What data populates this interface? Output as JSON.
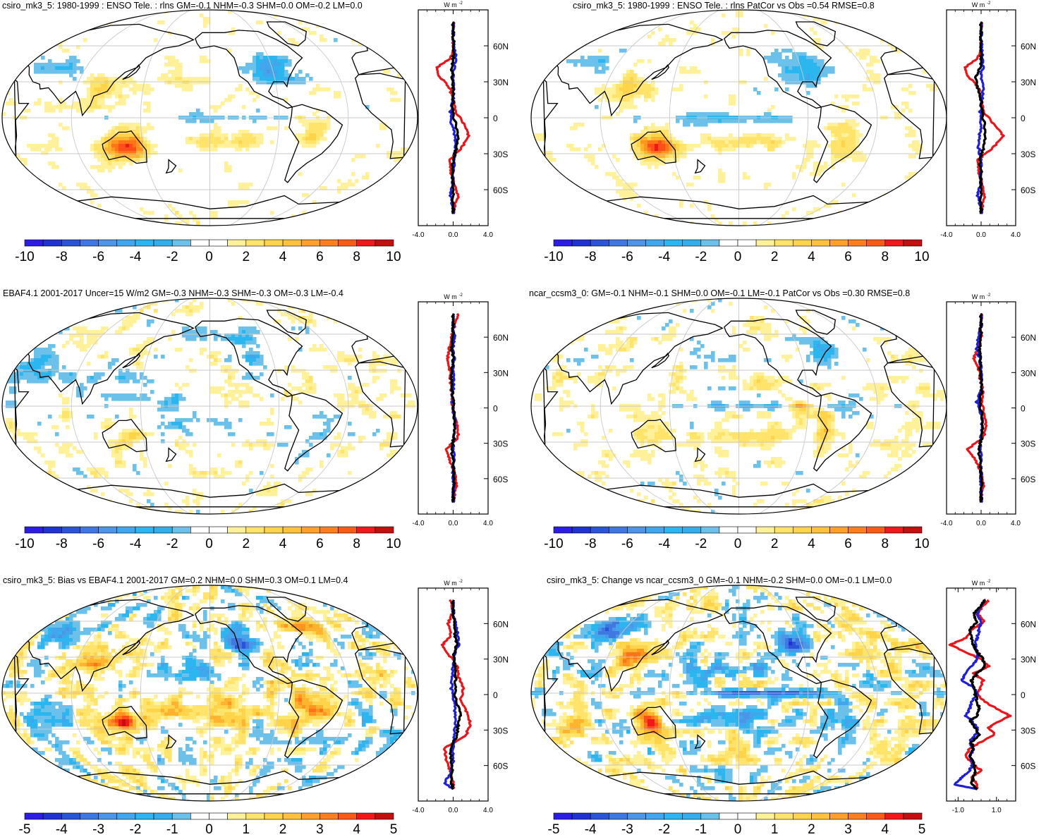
{
  "colors": {
    "scale": [
      "#2b1de6",
      "#1f32d4",
      "#2a55d8",
      "#3f78e0",
      "#4d95e6",
      "#43a6ec",
      "#2cb6f0",
      "#6cc1ea",
      "#ffffff",
      "#ffffff",
      "#fff199",
      "#ffe36b",
      "#ffd34a",
      "#ffb32e",
      "#ff9520",
      "#ff7418",
      "#ff4e1a",
      "#f0181a",
      "#c40f0f"
    ],
    "land": "#000000",
    "grid": "#c8c8c8",
    "profile_red": "#e8151b",
    "profile_blue": "#1f1fd6",
    "profile_black": "#000000"
  },
  "panels": [
    {
      "id": "p1",
      "title": "csiro_mk3_5: 1980-1999 : ENSO Tele. : rlns GM=-0.1 NHM=-0.3 SHM=0.0 OM=-0.2 LM=0.0",
      "colorbar_labels": [
        "-10",
        "-8",
        "-6",
        "-4",
        "-2",
        "0",
        "2",
        "4",
        "6",
        "8",
        "10"
      ],
      "profile": {
        "unit": "W m",
        "unit_exp": "-2",
        "xticks": [
          "-4.0",
          "0.0",
          "4.0"
        ],
        "xrange": [
          -4,
          4
        ],
        "yticks": [
          "60N",
          "30N",
          "0",
          "30S",
          "60S"
        ],
        "lat": [
          80,
          70,
          60,
          50,
          42,
          35,
          25,
          15,
          5,
          -5,
          -15,
          -25,
          -35,
          -45,
          -55,
          -65,
          -75,
          -80
        ],
        "red": [
          0,
          0,
          0,
          -0.3,
          -1.8,
          -1.6,
          -0.4,
          0,
          0.3,
          1.2,
          1.8,
          1.0,
          -0.4,
          -0.3,
          0.1,
          0.6,
          0.1,
          0
        ],
        "blue": [
          0,
          0,
          0.1,
          0.3,
          0.1,
          0,
          0.1,
          0,
          -0.3,
          -0.2,
          0.2,
          0.3,
          0.1,
          0,
          0,
          -0.3,
          0,
          0
        ],
        "black": [
          0,
          0,
          0.1,
          0,
          -0.2,
          -0.1,
          0,
          0,
          -0.1,
          0.3,
          0.6,
          0.4,
          0,
          -0.1,
          0,
          0,
          0,
          0
        ]
      }
    },
    {
      "id": "p2",
      "title": "csiro_mk3_5: 1980-1999 : ENSO Tele. : rlns PatCor vs Obs =0.54 RMSE=0.8",
      "colorbar_labels": [
        "-10",
        "-8",
        "-6",
        "-4",
        "-2",
        "0",
        "2",
        "4",
        "6",
        "8",
        "10"
      ],
      "profile": {
        "unit": "W m",
        "unit_exp": "-2",
        "xticks": [
          "-4.0",
          "0.0",
          "4.0"
        ],
        "xrange": [
          -4,
          4
        ],
        "yticks": [
          "60N",
          "30N",
          "0",
          "30S",
          "60S"
        ],
        "lat": [
          80,
          70,
          60,
          50,
          42,
          35,
          25,
          15,
          5,
          -5,
          -15,
          -25,
          -35,
          -45,
          -55,
          -65,
          -75,
          -80
        ],
        "red": [
          0,
          0,
          0,
          -0.4,
          -1.8,
          -1.5,
          -0.3,
          0,
          0.3,
          1.4,
          2.6,
          1.4,
          -0.4,
          -0.3,
          0.1,
          0.4,
          0.1,
          0
        ],
        "blue": [
          0,
          0,
          0.1,
          0.1,
          0.2,
          0,
          0.3,
          0.1,
          -0.1,
          0,
          -0.2,
          -0.3,
          0,
          -0.1,
          0,
          -0.4,
          0,
          0
        ],
        "black": [
          0,
          0,
          0,
          0,
          -0.1,
          -0.6,
          -0.4,
          0,
          0.1,
          0.4,
          0.5,
          0.3,
          -0.2,
          0,
          0,
          0,
          0,
          0
        ]
      }
    },
    {
      "id": "p3",
      "title": "EBAF4.1 2001-2017 Uncer=15 W/m2 GM=-0.3 NHM=-0.3 SHM=-0.3 OM=-0.3 LM=-0.4",
      "colorbar_labels": [
        "-10",
        "-8",
        "-6",
        "-4",
        "-2",
        "0",
        "2",
        "4",
        "6",
        "8",
        "10"
      ],
      "profile": {
        "unit": "W m",
        "unit_exp": "-2",
        "xticks": [
          "-4.0",
          "0.0",
          "4.0"
        ],
        "xrange": [
          -4,
          4
        ],
        "yticks": [
          "60N",
          "30N",
          "0",
          "30S",
          "60S"
        ],
        "lat": [
          80,
          70,
          60,
          50,
          42,
          35,
          25,
          15,
          5,
          -5,
          -15,
          -25,
          -35,
          -45,
          -55,
          -65,
          -75,
          -80
        ],
        "red": [
          0.5,
          0.2,
          -0.2,
          -0.5,
          -0.6,
          -0.4,
          -0.3,
          -0.2,
          -0.1,
          0,
          0.5,
          0.6,
          -0.8,
          -0.4,
          0.2,
          0.4,
          0.1,
          0
        ],
        "blue": [
          0,
          0,
          0.2,
          -0.1,
          0.1,
          0,
          0.1,
          0,
          -0.1,
          0.1,
          0.2,
          0.1,
          0,
          0.1,
          0,
          0.1,
          0,
          0
        ],
        "black": [
          0,
          0,
          0,
          -0.2,
          0,
          -0.1,
          -0.2,
          -0.1,
          0,
          0.1,
          0.2,
          0.1,
          -0.2,
          0,
          0.1,
          0.1,
          0,
          0
        ]
      }
    },
    {
      "id": "p4",
      "title": "ncar_ccsm3_0: GM=-0.1 NHM=-0.1 SHM=0.0 OM=-0.1 LM=-0.1 PatCor vs Obs =0.30 RMSE=0.8",
      "colorbar_labels": [
        "-10",
        "-8",
        "-6",
        "-4",
        "-2",
        "0",
        "2",
        "4",
        "6",
        "8",
        "10"
      ],
      "profile": {
        "unit": "W m",
        "unit_exp": "-2",
        "xticks": [
          "-4.0",
          "0.0",
          "4.0"
        ],
        "xrange": [
          -4,
          4
        ],
        "yticks": [
          "60N",
          "30N",
          "0",
          "30S",
          "60S"
        ],
        "lat": [
          80,
          70,
          60,
          50,
          42,
          35,
          25,
          15,
          5,
          -5,
          -15,
          -25,
          -35,
          -45,
          -55,
          -65,
          -75,
          -80
        ],
        "red": [
          0,
          0,
          0,
          -0.5,
          -0.8,
          -0.3,
          -0.1,
          0.2,
          0.1,
          0.3,
          0.6,
          0.3,
          -1.6,
          -0.6,
          0,
          0.3,
          0,
          0
        ],
        "blue": [
          0,
          0,
          -0.3,
          -0.5,
          -0.2,
          0,
          0.1,
          0,
          -0.5,
          0,
          0.1,
          0,
          -0.1,
          0,
          0,
          0,
          0,
          0
        ],
        "black": [
          0,
          0,
          0,
          -0.2,
          -0.1,
          -0.1,
          0,
          0.1,
          -0.2,
          0.1,
          0.2,
          0.1,
          -0.3,
          -0.1,
          0,
          0.1,
          0,
          0
        ]
      }
    },
    {
      "id": "p5",
      "title": "csiro_mk3_5: Bias vs EBAF4.1 2001-2017 GM=0.2 NHM=0.0 SHM=0.3 OM=0.1 LM=0.4",
      "colorbar_labels": [
        "-5",
        "-4",
        "-3",
        "-2",
        "-1",
        "0",
        "1",
        "2",
        "3",
        "4",
        "5"
      ],
      "profile": {
        "unit": "W m",
        "unit_exp": "-2",
        "xticks": [
          "-4.0",
          "0.0",
          "4.0"
        ],
        "xrange": [
          -4,
          4
        ],
        "yticks": [
          "60N",
          "30N",
          "0",
          "30S",
          "60S"
        ],
        "lat": [
          80,
          70,
          60,
          50,
          42,
          35,
          25,
          15,
          5,
          -5,
          -15,
          -25,
          -35,
          -45,
          -55,
          -65,
          -75,
          -80
        ],
        "red": [
          -0.4,
          0,
          -0.6,
          -0.3,
          -1.2,
          -0.6,
          0.4,
          0.6,
          1.2,
          0.8,
          1.6,
          2.0,
          1.4,
          -1.0,
          -0.8,
          -0.3,
          0,
          0
        ],
        "blue": [
          0,
          0,
          0.3,
          0.5,
          0.6,
          0.2,
          0,
          -0.1,
          -0.2,
          0.1,
          0.2,
          0.3,
          0.1,
          0,
          0,
          -0.2,
          -1.0,
          0
        ],
        "black": [
          0,
          0,
          0.2,
          0.2,
          0.4,
          0.1,
          0.2,
          0.3,
          0.2,
          0.3,
          0.9,
          0.6,
          0.4,
          -0.3,
          -0.2,
          -0.1,
          -0.2,
          0
        ]
      }
    },
    {
      "id": "p6",
      "title": "csiro_mk3_5: Change vs ncar_ccsm3_0 GM=-0.1 NHM=-0.2 SHM=0.0 OM=-0.1 LM=0.0",
      "colorbar_labels": [
        "-5",
        "-4",
        "-3",
        "-2",
        "-1",
        "0",
        "1",
        "2",
        "3",
        "4",
        "5"
      ],
      "profile": {
        "unit": "W m",
        "unit_exp": "-2",
        "xticks": [
          "-1.0",
          "1.0"
        ],
        "xtick_values": [
          -1,
          1
        ],
        "xrange": [
          -1.6,
          2.0
        ],
        "yticks": [
          "60N",
          "30N",
          "0",
          "30S",
          "60S"
        ],
        "lat": [
          80,
          75,
          68,
          62,
          55,
          48,
          42,
          36,
          30,
          24,
          18,
          12,
          6,
          0,
          -6,
          -12,
          -18,
          -22,
          -28,
          -34,
          -40,
          -46,
          -52,
          -58,
          -64,
          -70,
          -76,
          -80
        ],
        "red": [
          0.6,
          0.3,
          0.0,
          0.4,
          -0.3,
          -0.6,
          -1.4,
          -0.6,
          0.2,
          0.6,
          -0.2,
          0.3,
          0.2,
          0.0,
          0.4,
          1.0,
          1.7,
          1.2,
          0.6,
          0.9,
          0.2,
          -0.4,
          -0.6,
          -0.3,
          0.2,
          -0.3,
          0.0,
          0.0
        ],
        "blue": [
          0.4,
          0.2,
          0.0,
          0.2,
          0.1,
          0.0,
          -0.1,
          0.0,
          0.0,
          -0.3,
          -0.6,
          -0.8,
          -0.2,
          0.0,
          -0.3,
          -0.4,
          -0.6,
          -0.3,
          0.0,
          -0.1,
          -0.4,
          -0.2,
          -0.4,
          -0.2,
          -0.4,
          -0.8,
          -1.2,
          0.0
        ],
        "black": [
          0.4,
          0.2,
          -0.2,
          0.0,
          -0.4,
          -0.3,
          -0.2,
          0.0,
          0.3,
          0.4,
          0.0,
          -0.3,
          -0.2,
          -0.1,
          0.0,
          0.1,
          0.0,
          -0.4,
          -0.1,
          0.1,
          -0.3,
          -0.2,
          -0.4,
          -0.2,
          -0.1,
          -0.2,
          -0.3,
          0.0
        ]
      }
    }
  ],
  "chart_data": [
    {
      "type": "heatmap",
      "title": "csiro_mk3_5: 1980-1999 : ENSO Tele. : rlns GM=-0.1 NHM=-0.3 SHM=0.0 OM=-0.2 LM=0.0",
      "colorbar_range": [
        -10,
        10
      ],
      "units": "W m-2"
    },
    {
      "type": "heatmap",
      "title": "csiro_mk3_5: 1980-1999 : ENSO Tele. : rlns PatCor vs Obs =0.54 RMSE=0.8",
      "colorbar_range": [
        -10,
        10
      ],
      "units": "W m-2"
    },
    {
      "type": "heatmap",
      "title": "EBAF4.1 2001-2017 Uncer=15 W/m2 GM=-0.3 NHM=-0.3 SHM=-0.3 OM=-0.3 LM=-0.4",
      "colorbar_range": [
        -10,
        10
      ],
      "units": "W m-2"
    },
    {
      "type": "heatmap",
      "title": "ncar_ccsm3_0: GM=-0.1 NHM=-0.1 SHM=0.0 OM=-0.1 LM=-0.1 PatCor vs Obs =0.30 RMSE=0.8",
      "colorbar_range": [
        -10,
        10
      ],
      "units": "W m-2"
    },
    {
      "type": "heatmap",
      "title": "csiro_mk3_5: Bias vs EBAF4.1 2001-2017 GM=0.2 NHM=0.0 SHM=0.3 OM=0.1 LM=0.4",
      "colorbar_range": [
        -5,
        5
      ],
      "units": "W m-2"
    },
    {
      "type": "heatmap",
      "title": "csiro_mk3_5: Change vs ncar_ccsm3_0 GM=-0.1 NHM=-0.2 SHM=0.0 OM=-0.1 LM=0.0",
      "colorbar_range": [
        -5,
        5
      ],
      "units": "W m-2"
    }
  ]
}
